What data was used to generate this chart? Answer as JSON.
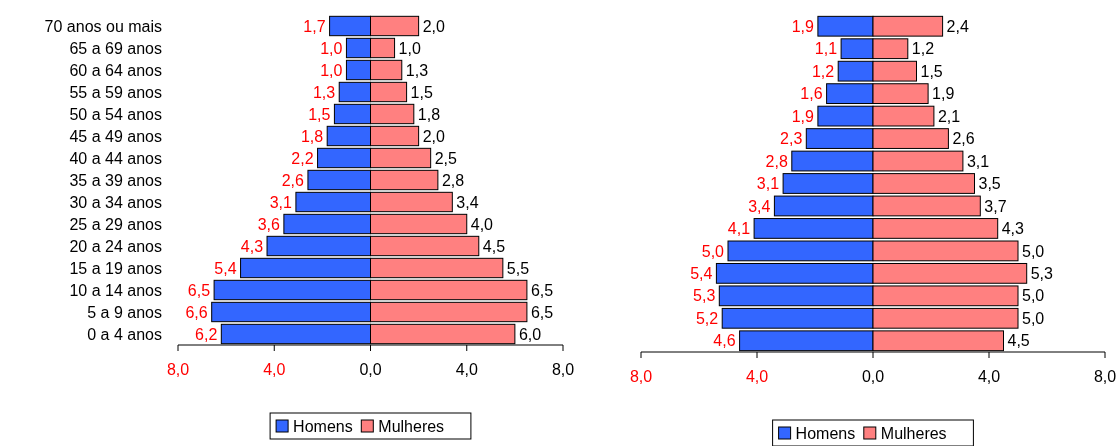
{
  "chart_data": [
    {
      "type": "bar",
      "orientation": "horizontal",
      "categories": [
        "70 anos ou mais",
        "65 a 69 anos",
        "60 a 64 anos",
        "55 a 59 anos",
        "50 a 54 anos",
        "45 a 49 anos",
        "40 a 44 anos",
        "35 a 39 anos",
        "30 a 34 anos",
        "25 a 29 anos",
        "20 a 24 anos",
        "15 a 19 anos",
        "10 a 14 anos",
        "5 a 9 anos",
        "0 a 4 anos"
      ],
      "series": [
        {
          "name": "Homens",
          "color": "#3366ff",
          "base": [
            -1.7,
            -1.0,
            -1.0,
            -1.3,
            -1.5,
            -1.8,
            -2.2,
            -2.6,
            -3.1,
            -3.6,
            -4.3,
            -5.4,
            -6.5,
            -6.6,
            -6.2
          ],
          "values": [
            1.7,
            1.0,
            1.0,
            1.3,
            1.5,
            1.8,
            2.2,
            2.6,
            3.1,
            3.6,
            4.3,
            5.4,
            6.5,
            6.6,
            6.2
          ],
          "value_labels": [
            "1,7",
            "1,0",
            "1,0",
            "1,3",
            "1,5",
            "1,8",
            "2,2",
            "2,6",
            "3,1",
            "3,6",
            "4,3",
            "5,4",
            "6,5",
            "6,6",
            "6,2"
          ]
        },
        {
          "name": "Mulheres",
          "color": "#ff8080",
          "values": [
            2.0,
            1.0,
            1.3,
            1.5,
            1.8,
            2.0,
            2.5,
            2.8,
            3.4,
            4.0,
            4.5,
            5.5,
            6.5,
            6.5,
            6.0
          ],
          "value_labels": [
            "2,0",
            "1,0",
            "1,3",
            "1,5",
            "1,8",
            "2,0",
            "2,5",
            "2,8",
            "3,4",
            "4,0",
            "4,5",
            "5,5",
            "6,5",
            "6,5",
            "6,0"
          ]
        }
      ],
      "xlim": [
        -8,
        8
      ],
      "xticks": [
        {
          "value": -8,
          "label": "8,0"
        },
        {
          "value": -4,
          "label": "4,0"
        },
        {
          "value": 0,
          "label": "0,0"
        },
        {
          "value": 4,
          "label": "4,0"
        },
        {
          "value": 8,
          "label": "8,0"
        }
      ],
      "legend": "bottom"
    },
    {
      "type": "bar",
      "orientation": "horizontal",
      "categories": [
        null,
        null,
        null,
        null,
        null,
        null,
        null,
        null,
        null,
        null,
        null,
        null,
        null,
        null,
        null
      ],
      "series": [
        {
          "name": "Homens",
          "color": "#3366ff",
          "base": [
            -1.9,
            -1.1,
            -1.2,
            -1.6,
            -1.9,
            -2.3,
            -2.8,
            -3.1,
            -3.4,
            -4.1,
            -5.0,
            -5.4,
            -5.3,
            -5.2,
            -4.6
          ],
          "values": [
            1.9,
            1.1,
            1.2,
            1.6,
            1.9,
            2.3,
            2.8,
            3.1,
            3.4,
            4.1,
            5.0,
            5.4,
            5.3,
            5.2,
            4.6
          ],
          "value_labels": [
            "1,9",
            "1,1",
            "1,2",
            "1,6",
            "1,9",
            "2,3",
            "2,8",
            "3,1",
            "3,4",
            "4,1",
            "5,0",
            "5,4",
            "5,3",
            "5,2",
            "4,6"
          ]
        },
        {
          "name": "Mulheres",
          "color": "#ff8080",
          "values": [
            2.4,
            1.2,
            1.5,
            1.9,
            2.1,
            2.6,
            3.1,
            3.5,
            3.7,
            4.3,
            5.0,
            5.3,
            5.0,
            5.0,
            4.5
          ],
          "value_labels": [
            "2,4",
            "1,2",
            "1,5",
            "1,9",
            "2,1",
            "2,6",
            "3,1",
            "3,5",
            "3,7",
            "4,3",
            "5,0",
            "5,3",
            "5,0",
            "5,0",
            "4,5"
          ]
        }
      ],
      "xlim": [
        -8,
        8
      ],
      "xticks": [
        {
          "value": -8,
          "label": "8,0"
        },
        {
          "value": -4,
          "label": "4,0"
        },
        {
          "value": 0,
          "label": "0,0"
        },
        {
          "value": 4,
          "label": "4,0"
        },
        {
          "value": 8,
          "label": "8,0"
        }
      ],
      "tick_labels": "x",
      "legend": "bottom"
    }
  ]
}
